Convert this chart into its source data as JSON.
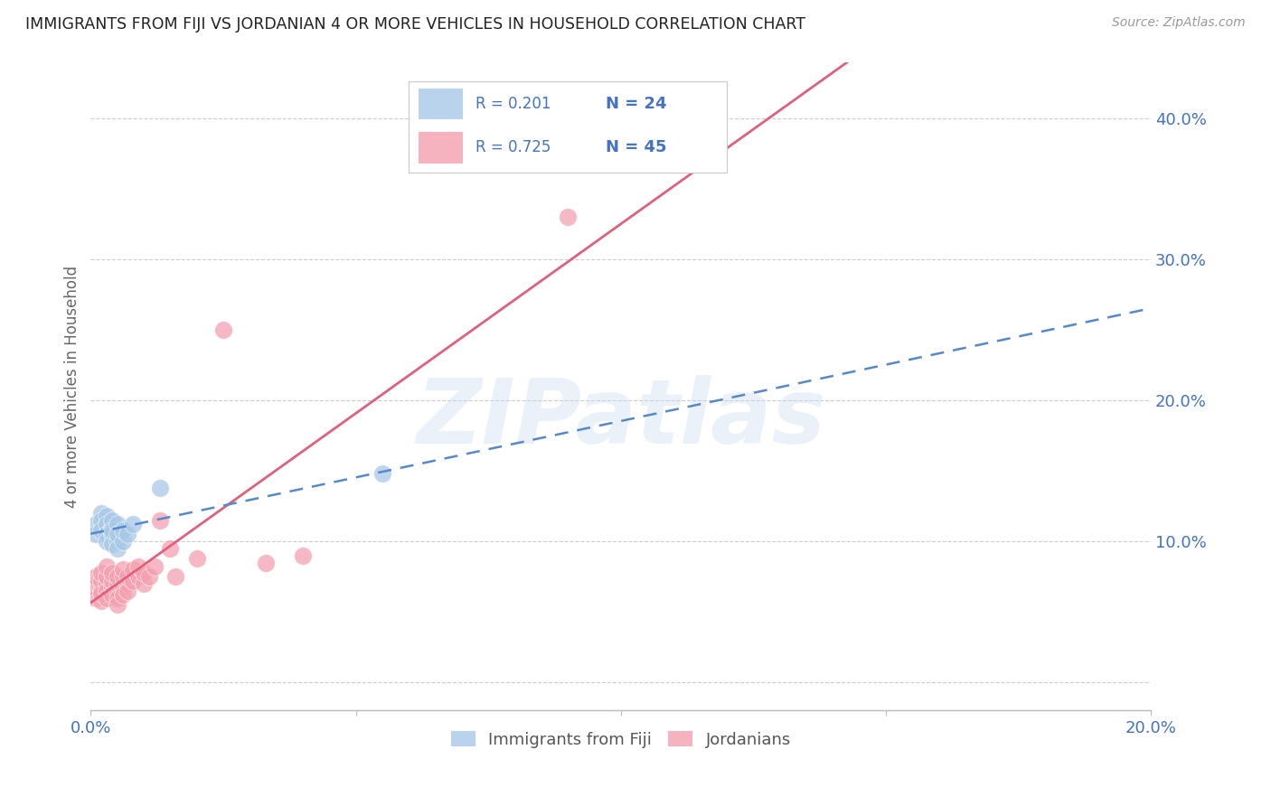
{
  "title": "IMMIGRANTS FROM FIJI VS JORDANIAN 4 OR MORE VEHICLES IN HOUSEHOLD CORRELATION CHART",
  "source": "Source: ZipAtlas.com",
  "ylabel": "4 or more Vehicles in Household",
  "xlim": [
    0.0,
    0.2
  ],
  "ylim": [
    -0.02,
    0.44
  ],
  "xticks": [
    0.0,
    0.05,
    0.1,
    0.15,
    0.2
  ],
  "yticks": [
    0.0,
    0.1,
    0.2,
    0.3,
    0.4
  ],
  "xtick_labels": [
    "0.0%",
    "",
    "",
    "",
    "20.0%"
  ],
  "ytick_labels": [
    "",
    "10.0%",
    "20.0%",
    "30.0%",
    "40.0%"
  ],
  "fiji_color": "#a8c8e8",
  "jordan_color": "#f4a0b0",
  "fiji_line_color": "#5588cc",
  "jordan_line_color": "#e06080",
  "fiji_R": 0.201,
  "fiji_N": 24,
  "jordan_R": 0.725,
  "jordan_N": 45,
  "fiji_scatter_x": [
    0.001,
    0.001,
    0.002,
    0.002,
    0.002,
    0.003,
    0.003,
    0.003,
    0.003,
    0.004,
    0.004,
    0.004,
    0.004,
    0.004,
    0.005,
    0.005,
    0.005,
    0.005,
    0.006,
    0.006,
    0.007,
    0.008,
    0.013,
    0.055
  ],
  "fiji_scatter_y": [
    0.112,
    0.105,
    0.12,
    0.115,
    0.108,
    0.118,
    0.112,
    0.105,
    0.1,
    0.11,
    0.115,
    0.105,
    0.098,
    0.108,
    0.1,
    0.095,
    0.112,
    0.105,
    0.1,
    0.108,
    0.105,
    0.112,
    0.138,
    0.148
  ],
  "jordan_scatter_x": [
    0.001,
    0.001,
    0.001,
    0.002,
    0.002,
    0.002,
    0.002,
    0.002,
    0.003,
    0.003,
    0.003,
    0.003,
    0.003,
    0.004,
    0.004,
    0.004,
    0.004,
    0.005,
    0.005,
    0.005,
    0.005,
    0.005,
    0.006,
    0.006,
    0.006,
    0.006,
    0.007,
    0.007,
    0.007,
    0.008,
    0.008,
    0.009,
    0.009,
    0.01,
    0.01,
    0.011,
    0.012,
    0.013,
    0.015,
    0.016,
    0.02,
    0.025,
    0.033,
    0.04,
    0.09
  ],
  "jordan_scatter_y": [
    0.068,
    0.075,
    0.06,
    0.065,
    0.072,
    0.078,
    0.058,
    0.063,
    0.07,
    0.065,
    0.06,
    0.075,
    0.082,
    0.068,
    0.072,
    0.062,
    0.078,
    0.065,
    0.07,
    0.06,
    0.055,
    0.075,
    0.068,
    0.075,
    0.062,
    0.08,
    0.07,
    0.065,
    0.075,
    0.072,
    0.08,
    0.075,
    0.082,
    0.07,
    0.078,
    0.075,
    0.082,
    0.115,
    0.095,
    0.075,
    0.088,
    0.25,
    0.085,
    0.09,
    0.33
  ],
  "background_color": "#ffffff",
  "grid_color": "#cccccc",
  "watermark_text": "ZIPatlas",
  "legend_labels": [
    "Immigrants from Fiji",
    "Jordanians"
  ],
  "fiji_line_start_x": 0.0,
  "fiji_line_end_x": 0.2,
  "jordan_line_start_x": 0.0,
  "jordan_line_end_x": 0.2
}
